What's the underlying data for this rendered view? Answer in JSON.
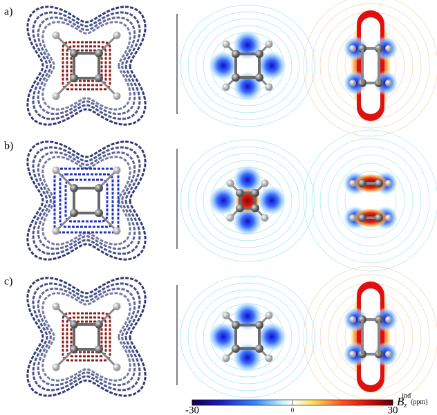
{
  "panels": [
    {
      "label": "a)"
    },
    {
      "label": "b)"
    },
    {
      "label": "c)"
    }
  ],
  "colorbar": {
    "min": -30,
    "max": 30,
    "ticks": [
      -30,
      0,
      30
    ],
    "symbol": "B",
    "subscript": "z",
    "superscript": "ind",
    "unit": "(ppm)"
  }
}
